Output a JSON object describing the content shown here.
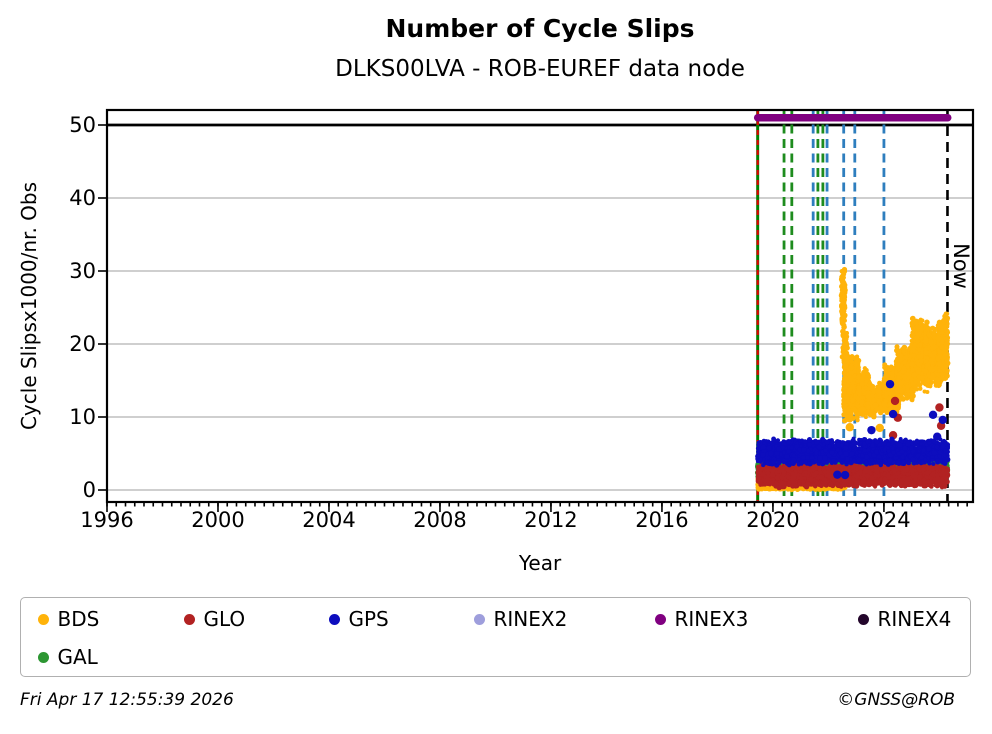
{
  "title": "Number of Cycle Slips",
  "subtitle": "DLKS00LVA - ROB-EUREF data node",
  "footer": {
    "timestamp": "Fri Apr 17 12:55:39 2026",
    "credit": "©GNSS@ROB"
  },
  "chart_data": {
    "type": "scatter",
    "title": "Number of Cycle Slips",
    "subtitle": "DLKS00LVA - ROB-EUREF data node",
    "xlabel": "Year",
    "ylabel": "Cycle Slipsx1000/nr. Obs",
    "now_label": "Now",
    "xlim": [
      1996.0,
      2027.21
    ],
    "ylim": [
      -1.644,
      52.055
    ],
    "xticks": [
      "1996",
      "2000",
      "2004",
      "2008",
      "2012",
      "2016",
      "2020",
      "2024"
    ],
    "yticks": [
      "0",
      "10",
      "20",
      "30",
      "40",
      "50"
    ],
    "xtick_values": [
      1996,
      2000,
      2004,
      2008,
      2012,
      2016,
      2020,
      2024
    ],
    "ytick_values": [
      0,
      10,
      20,
      30,
      40,
      50
    ],
    "minor_tick_step_years": 0.33333,
    "grid": {
      "color": "#bfbfbf",
      "y_values": [
        0,
        10,
        20,
        30,
        40
      ]
    },
    "cap_line": {
      "y": 50,
      "color": "#000000"
    },
    "hbar": {
      "label": "RINEX3",
      "y": 51,
      "from": 2019.45,
      "to": 2026.3,
      "color": "#800080"
    },
    "now": {
      "x": 2026.29
    },
    "vlines": [
      {
        "x": 2019.45,
        "color": "#008000",
        "dash": [],
        "width": 3.0,
        "name": "data-start-green-line"
      },
      {
        "x": 2019.45,
        "color": "#e00000",
        "dash": [
          5,
          5
        ],
        "width": 2.2,
        "name": "data-start-red-dashes"
      },
      {
        "x": 2020.4,
        "color": "#1e8c1e",
        "dash": [
          9,
          5.5
        ],
        "width": 2.8,
        "name": "event-green"
      },
      {
        "x": 2020.68,
        "color": "#1e8c1e",
        "dash": [
          9,
          5.5
        ],
        "width": 2.8,
        "name": "event-green"
      },
      {
        "x": 2021.45,
        "color": "#2e7ebe",
        "dash": [
          9,
          5.5
        ],
        "width": 2.8,
        "name": "event-blue"
      },
      {
        "x": 2021.62,
        "color": "#1e8c1e",
        "dash": [
          9,
          5.5
        ],
        "width": 2.8,
        "name": "event-green"
      },
      {
        "x": 2021.8,
        "color": "#1e8c1e",
        "dash": [
          9,
          5.5
        ],
        "width": 2.8,
        "name": "event-green"
      },
      {
        "x": 2021.95,
        "color": "#2e7ebe",
        "dash": [
          9,
          5.5
        ],
        "width": 2.8,
        "name": "event-blue"
      },
      {
        "x": 2022.55,
        "color": "#2e7ebe",
        "dash": [
          9,
          5.5
        ],
        "width": 2.8,
        "name": "event-blue"
      },
      {
        "x": 2022.95,
        "color": "#2e7ebe",
        "dash": [
          9,
          5.5
        ],
        "width": 2.8,
        "name": "event-blue"
      },
      {
        "x": 2024.0,
        "color": "#2e7ebe",
        "dash": [
          9,
          5.5
        ],
        "width": 2.8,
        "name": "event-blue"
      },
      {
        "x": 2026.29,
        "color": "#000000",
        "dash": [
          10,
          6
        ],
        "width": 2.6,
        "name": "now-line"
      }
    ],
    "series": [
      {
        "name": "BDS",
        "color": "#ffb30a",
        "segments": [
          {
            "t": [
              2019.45,
              2019.98
            ],
            "v": [
              0.3,
              3.0
            ],
            "n": 70
          },
          {
            "t": [
              2019.45,
              2022.62
            ],
            "v": [
              0.03,
              1.15
            ],
            "n": 800
          },
          {
            "t": [
              2022.47,
              2022.6
            ],
            "v": [
              21.0,
              31.2
            ],
            "n": 110
          },
          {
            "t": [
              2022.5,
              2022.68
            ],
            "v": [
              17.0,
              22.0
            ],
            "n": 55
          },
          {
            "t": [
              2022.55,
              2023.1
            ],
            "v": [
              9.3,
              18.8
            ],
            "n": 620
          },
          {
            "t": [
              2023.05,
              2023.45
            ],
            "v": [
              9.8,
              16.8
            ],
            "n": 380
          },
          {
            "t": [
              2023.4,
              2024.05
            ],
            "v": [
              9.8,
              14.8
            ],
            "n": 170
          },
          {
            "t": [
              2024.0,
              2024.55
            ],
            "v": [
              10.3,
              17.2
            ],
            "n": 430
          },
          {
            "t": [
              2024.45,
              2025.1
            ],
            "v": [
              11.8,
              19.8
            ],
            "n": 500
          },
          {
            "t": [
              2025.0,
              2025.6
            ],
            "v": [
              13.2,
              23.8
            ],
            "n": 540
          },
          {
            "t": [
              2025.5,
              2026.05
            ],
            "v": [
              13.8,
              22.6
            ],
            "n": 490
          },
          {
            "t": [
              2025.95,
              2026.3
            ],
            "v": [
              14.8,
              24.3
            ],
            "n": 320
          }
        ],
        "outliers": [
          [
            2022.77,
            8.6
          ],
          [
            2023.85,
            8.5
          ],
          [
            2022.63,
            5.3
          ]
        ]
      },
      {
        "name": "GAL",
        "color": "#2c9632",
        "segments": [
          {
            "t": [
              2019.45,
              2026.3
            ],
            "v": [
              2.35,
              4.35
            ],
            "n": 1500
          },
          {
            "t": [
              2019.45,
              2019.56
            ],
            "v": [
              0.8,
              4.8
            ],
            "n": 50
          }
        ],
        "outliers": []
      },
      {
        "name": "GLO",
        "color": "#b22222",
        "segments": [
          {
            "t": [
              2019.45,
              2026.3
            ],
            "v": [
              0.32,
              3.62
            ],
            "n": 2300
          }
        ],
        "outliers": [
          [
            2024.4,
            12.2
          ],
          [
            2024.5,
            9.9
          ],
          [
            2024.33,
            7.5
          ],
          [
            2026.0,
            11.3
          ],
          [
            2026.06,
            8.8
          ]
        ]
      },
      {
        "name": "GPS",
        "color": "#0d0dbe",
        "segments": [
          {
            "t": [
              2019.45,
              2026.3
            ],
            "v": [
              3.35,
              7.05
            ],
            "n": 2300
          }
        ],
        "outliers": [
          [
            2022.32,
            2.1
          ],
          [
            2022.6,
            2.05
          ],
          [
            2024.22,
            14.5
          ],
          [
            2024.33,
            10.4
          ],
          [
            2023.55,
            8.2
          ],
          [
            2025.77,
            10.3
          ],
          [
            2025.92,
            7.3
          ],
          [
            2026.12,
            9.6
          ]
        ]
      }
    ],
    "legend": {
      "position": "bottom",
      "entries": [
        {
          "label": "BDS",
          "color": "#ffb30a"
        },
        {
          "label": "GLO",
          "color": "#b22222"
        },
        {
          "label": "GPS",
          "color": "#0d0dbe"
        },
        {
          "label": "RINEX2",
          "color": "#9e9edc"
        },
        {
          "label": "RINEX3",
          "color": "#800080"
        },
        {
          "label": "RINEX4",
          "color": "#23062b"
        },
        {
          "label": "GAL",
          "color": "#2c9632"
        }
      ]
    }
  }
}
